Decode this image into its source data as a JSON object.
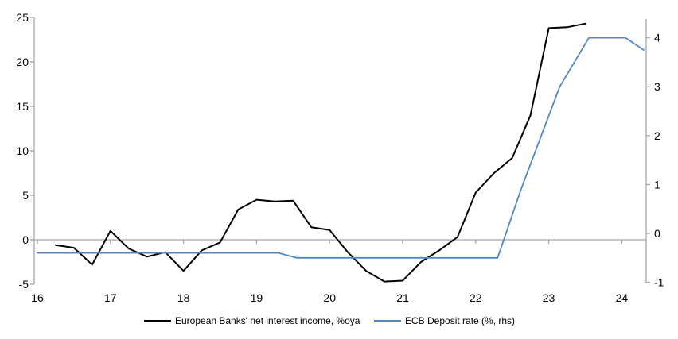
{
  "chart_data": {
    "type": "line",
    "title": "",
    "x_axis": {
      "ticks": [
        16,
        17,
        18,
        19,
        20,
        21,
        22,
        23,
        24
      ],
      "range": [
        16,
        24.35
      ],
      "label": ""
    },
    "left_axis": {
      "ticks": [
        25,
        20,
        15,
        10,
        5,
        0,
        -5
      ],
      "range": [
        -5,
        25
      ],
      "label": ""
    },
    "right_axis": {
      "ticks": [
        4,
        3,
        2,
        1,
        0,
        -1
      ],
      "range": [
        -1,
        4.5
      ],
      "label": ""
    },
    "grid": "zero-line-only",
    "legend_position": "bottom",
    "series": [
      {
        "name": "European Banks' net interest income, %oya",
        "axis": "left",
        "color": "#000000",
        "points": [
          [
            16.25,
            -0.6
          ],
          [
            16.5,
            -0.9
          ],
          [
            16.75,
            -2.8
          ],
          [
            17,
            1.0
          ],
          [
            17.25,
            -1.0
          ],
          [
            17.5,
            -1.9
          ],
          [
            17.75,
            -1.4
          ],
          [
            18,
            -3.5
          ],
          [
            18.25,
            -1.2
          ],
          [
            18.5,
            -0.3
          ],
          [
            18.75,
            3.4
          ],
          [
            19,
            4.5
          ],
          [
            19.25,
            4.3
          ],
          [
            19.5,
            4.4
          ],
          [
            19.75,
            1.4
          ],
          [
            20,
            1.1
          ],
          [
            20.25,
            -1.4
          ],
          [
            20.5,
            -3.5
          ],
          [
            20.75,
            -4.7
          ],
          [
            21,
            -4.6
          ],
          [
            21.25,
            -2.5
          ],
          [
            21.5,
            -1.2
          ],
          [
            21.75,
            0.3
          ],
          [
            22,
            5.3
          ],
          [
            22.25,
            7.5
          ],
          [
            22.5,
            9.2
          ],
          [
            22.75,
            14.0
          ],
          [
            23,
            23.8
          ],
          [
            23.25,
            23.9
          ],
          [
            23.5,
            24.3
          ]
        ]
      },
      {
        "name": "ECB Deposit rate (%, rhs)",
        "axis": "right",
        "color": "#5088c5",
        "points": [
          [
            16,
            -0.4
          ],
          [
            19.3,
            -0.4
          ],
          [
            19.55,
            -0.5
          ],
          [
            22.3,
            -0.5
          ],
          [
            22.62,
            0.9
          ],
          [
            23.15,
            3.0
          ],
          [
            23.55,
            4.0
          ],
          [
            24.05,
            4.0
          ],
          [
            24.3,
            3.75
          ]
        ]
      }
    ]
  },
  "legend": {
    "items": [
      {
        "label": "European Banks' net interest income, %oya",
        "color": "#000000"
      },
      {
        "label": "ECB Deposit rate (%, rhs)",
        "color": "#5088c5"
      }
    ]
  },
  "colors": {
    "background": "#ffffff",
    "axis_line": "#a6a6a6",
    "zero_line": "#a6a6a6",
    "tick_label": "#000000",
    "nii_line": "#000000",
    "ecb_line": "#5088c5"
  }
}
